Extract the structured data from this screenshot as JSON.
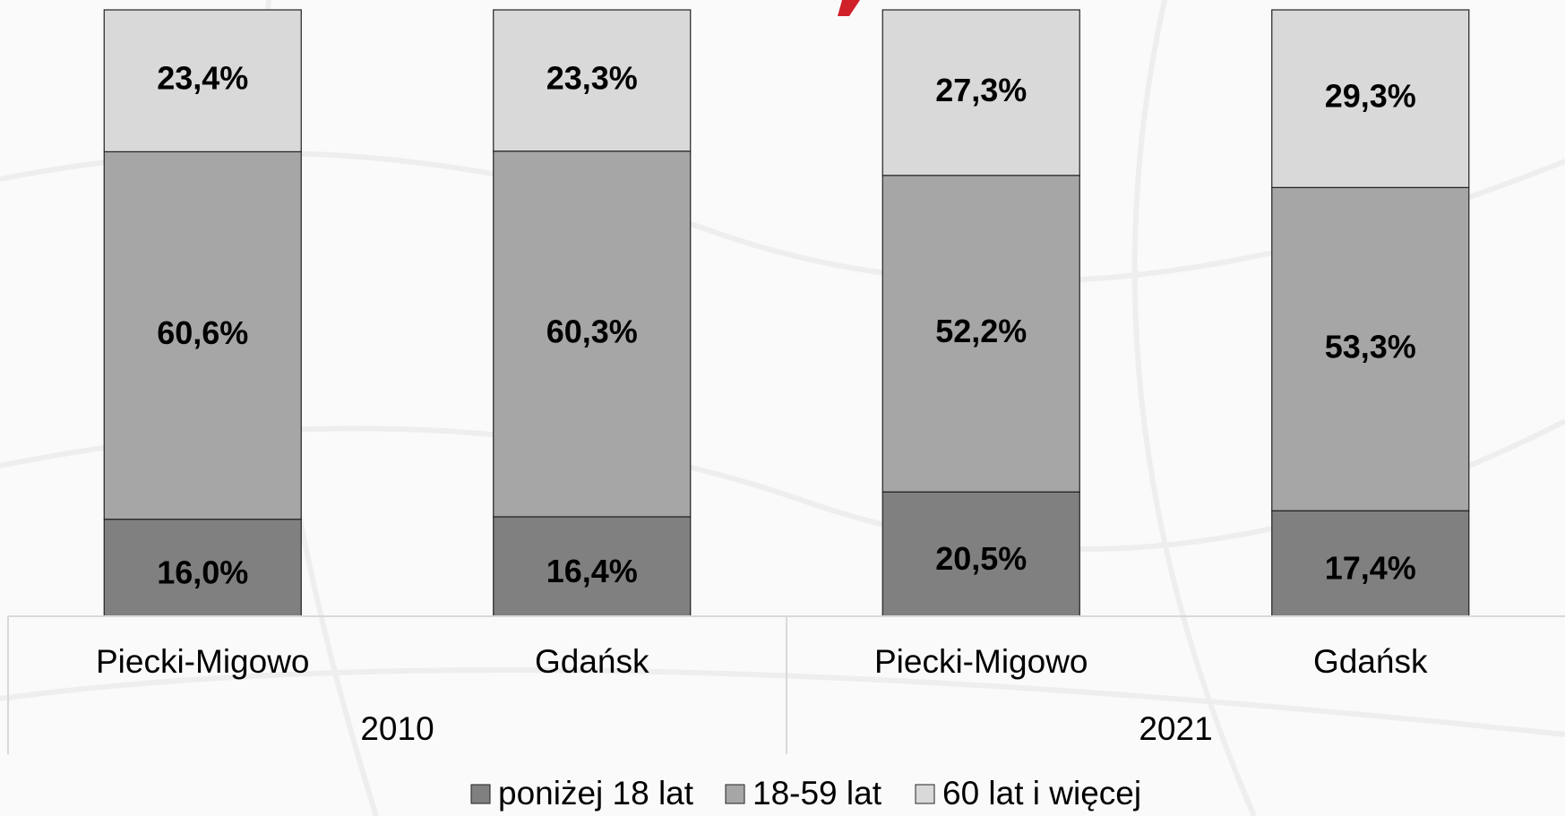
{
  "chart_data": {
    "type": "stacked_bar",
    "categories": [
      "Piecki-Migowo",
      "Gdańsk",
      "Piecki-Migowo",
      "Gdańsk"
    ],
    "groups": [
      "2010",
      "2021"
    ],
    "ylim": [
      0,
      100
    ],
    "series": [
      {
        "name": "poniżej 18 lat",
        "color": "#808080",
        "values": [
          16.0,
          16.4,
          20.5,
          17.4
        ],
        "value_labels": [
          "16,0%",
          "16,4%",
          "20,5%",
          "17,4%"
        ]
      },
      {
        "name": "18-59 lat",
        "color": "#a6a6a6",
        "values": [
          60.6,
          60.3,
          52.2,
          53.3
        ],
        "value_labels": [
          "60,6%",
          "60,3%",
          "52,2%",
          "53,3%"
        ]
      },
      {
        "name": "60 lat i więcej",
        "color": "#d9d9d9",
        "values": [
          23.4,
          23.3,
          27.3,
          29.3
        ],
        "value_labels": [
          "23,4%",
          "23,3%",
          "27,3%",
          "29,3%"
        ]
      }
    ]
  }
}
